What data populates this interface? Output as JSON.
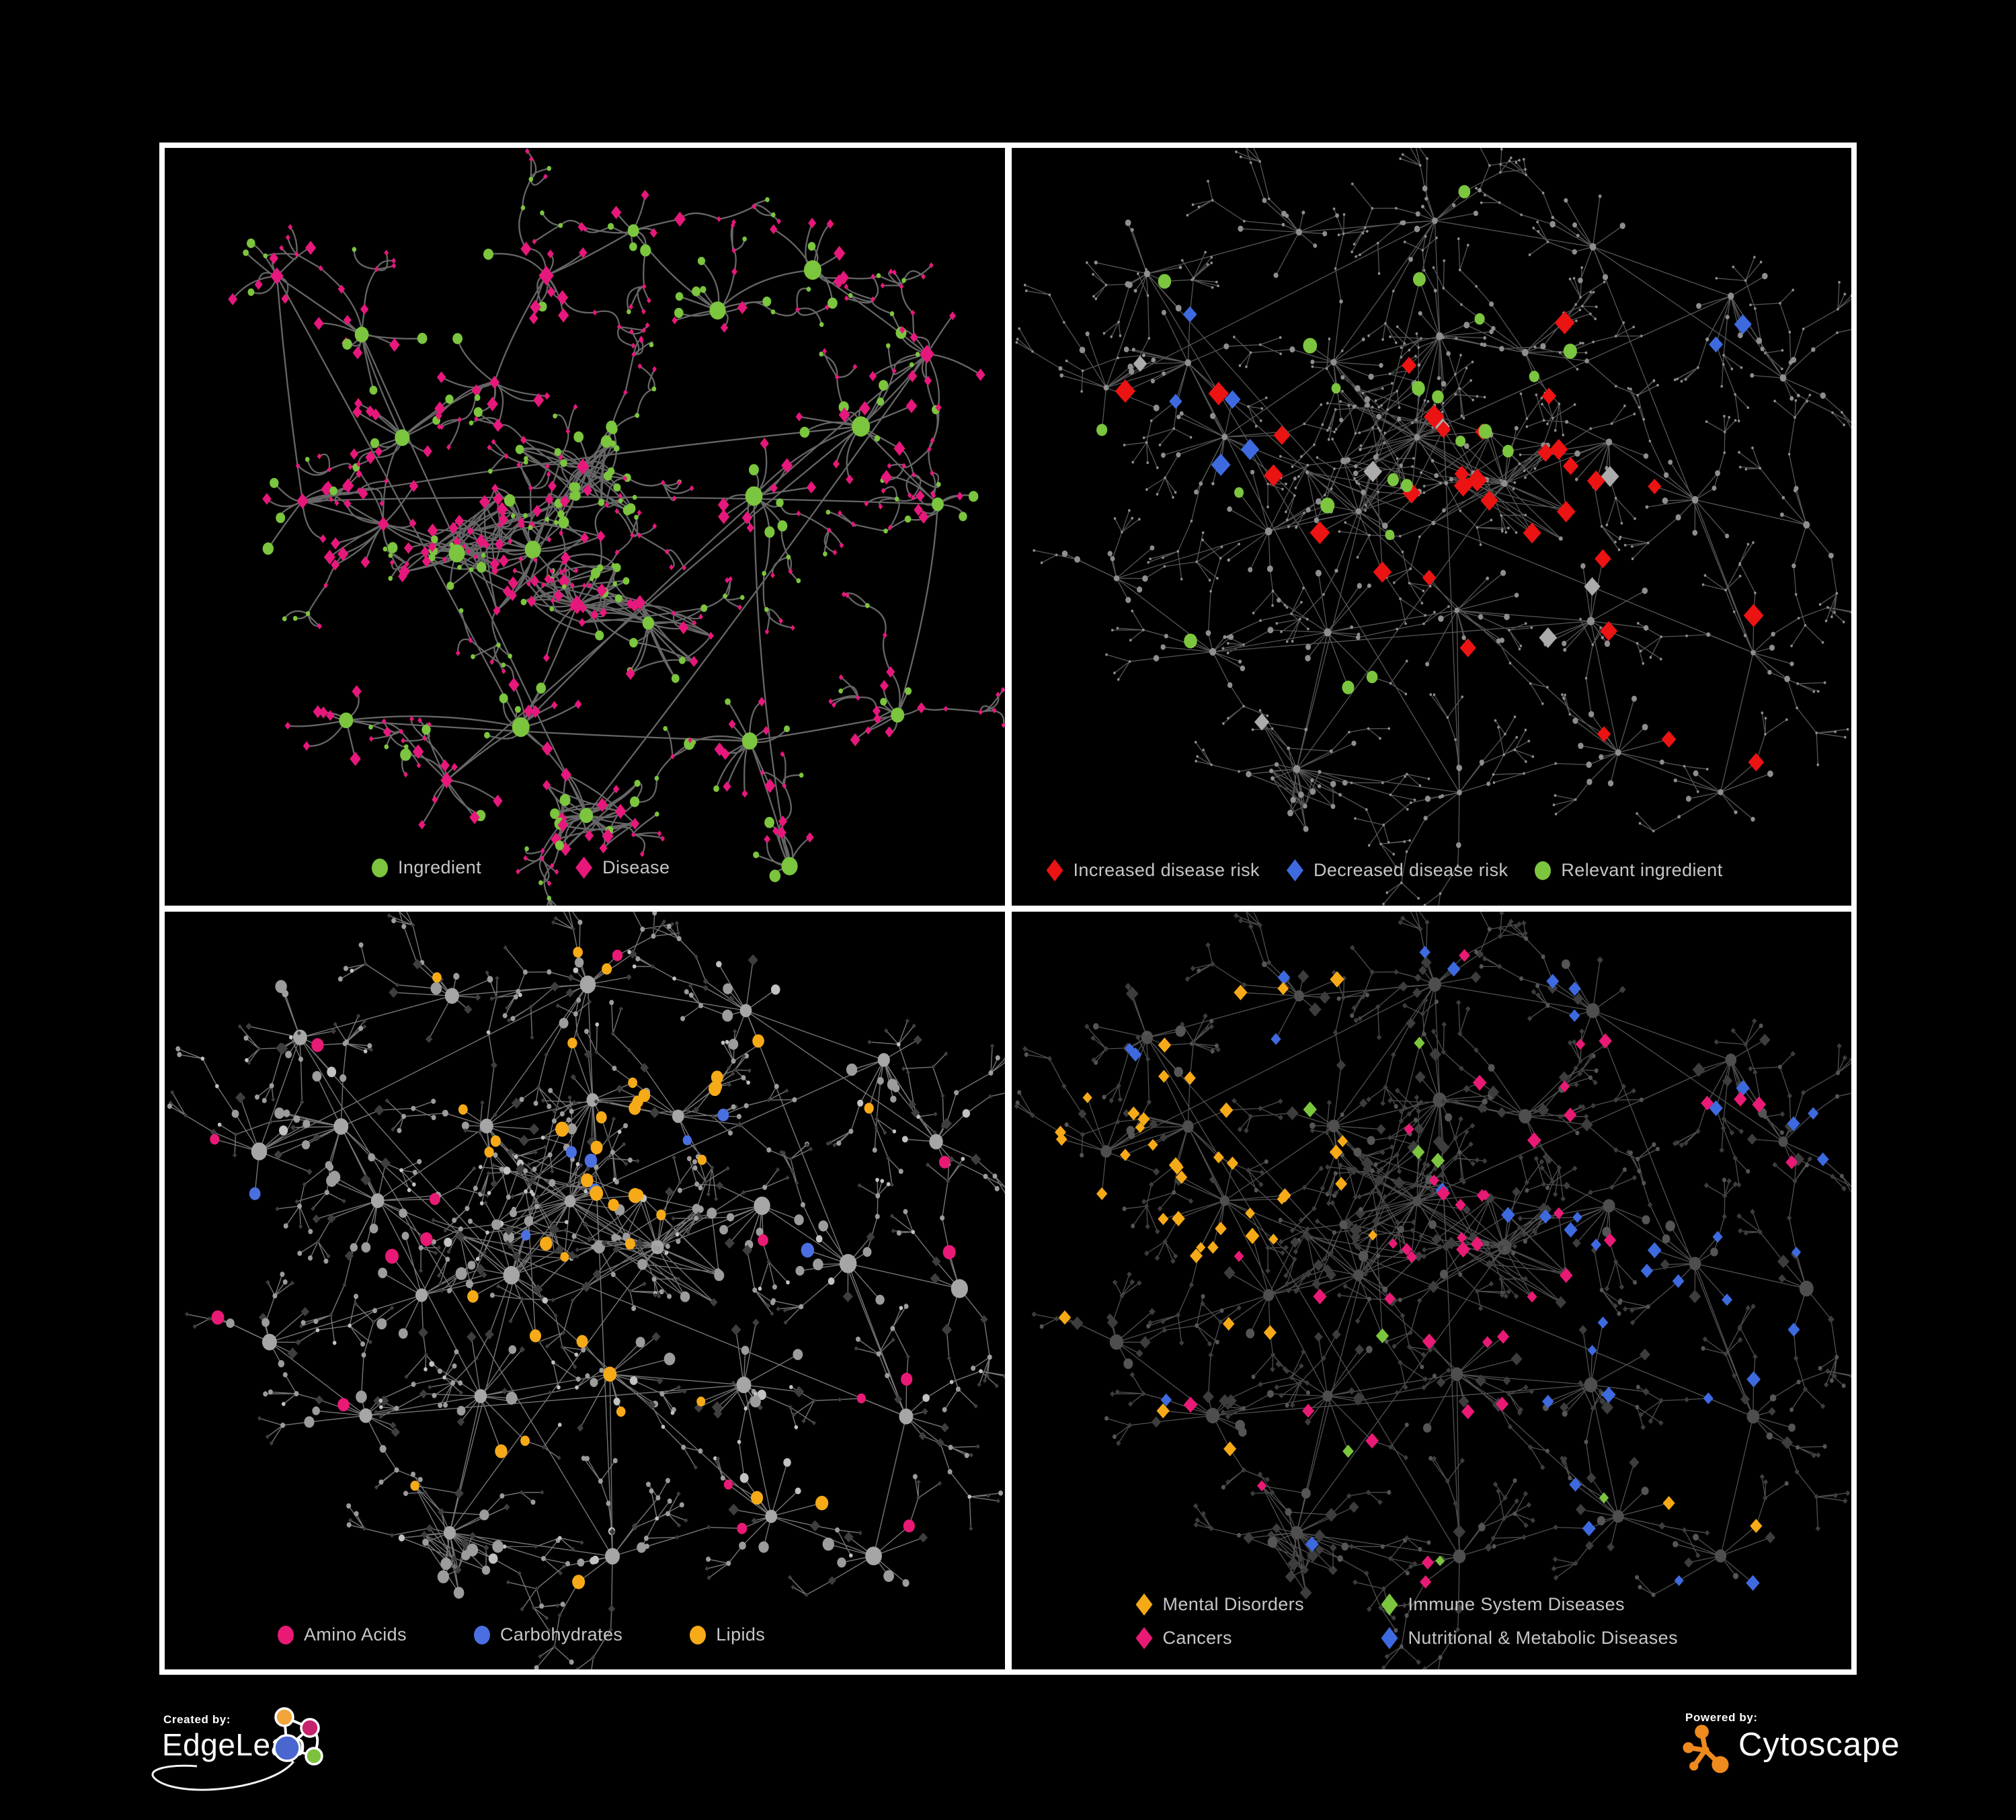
{
  "figure": {
    "background": "#000000",
    "panel_border_color": "#ffffff",
    "legend_text_color": "#c6c6c6"
  },
  "layouts": {
    "A": [
      [
        620,
        475,
        24,
        90,
        1
      ],
      [
        540,
        590,
        20,
        115
      ],
      [
        430,
        610,
        18,
        105
      ],
      [
        620,
        680,
        16,
        100
      ],
      [
        320,
        570,
        14,
        100
      ],
      [
        200,
        530,
        10,
        90
      ],
      [
        350,
        430,
        12,
        95
      ],
      [
        490,
        350,
        10,
        90
      ],
      [
        300,
        270,
        10,
        85
      ],
      [
        165,
        200,
        8,
        80
      ],
      [
        560,
        190,
        10,
        85
      ],
      [
        700,
        115,
        8,
        75
      ],
      [
        830,
        240,
        10,
        85
      ],
      [
        970,
        175,
        8,
        80
      ],
      [
        1130,
        300,
        10,
        85
      ],
      [
        1040,
        420,
        12,
        90
      ],
      [
        1160,
        540,
        8,
        80
      ],
      [
        880,
        520,
        12,
        95
      ],
      [
        730,
        700,
        16,
        95
      ],
      [
        1080,
        840,
        10,
        85
      ],
      [
        860,
        880,
        12,
        90
      ],
      [
        540,
        860,
        10,
        85
      ],
      [
        630,
        985,
        20,
        90
      ],
      [
        260,
        850,
        8,
        80
      ],
      [
        420,
        940,
        10,
        80
      ],
      [
        940,
        1060,
        8,
        75
      ]
    ],
    "B": [
      [
        200,
        190,
        9,
        85
      ],
      [
        420,
        130,
        10,
        80
      ],
      [
        640,
        100,
        12,
        85
      ],
      [
        870,
        150,
        10,
        80
      ],
      [
        1075,
        210,
        9,
        80
      ],
      [
        1150,
        345,
        8,
        75
      ],
      [
        150,
        360,
        9,
        85
      ],
      [
        260,
        310,
        13,
        95
      ],
      [
        320,
        430,
        14,
        95
      ],
      [
        480,
        310,
        12,
        90
      ],
      [
        630,
        270,
        14,
        95
      ],
      [
        770,
        310,
        12,
        90
      ],
      [
        600,
        430,
        22,
        120
      ],
      [
        730,
        490,
        20,
        115
      ],
      [
        520,
        530,
        16,
        105
      ],
      [
        380,
        575,
        10,
        90
      ],
      [
        890,
        430,
        10,
        90
      ],
      [
        1010,
        530,
        10,
        85
      ],
      [
        160,
        650,
        8,
        80
      ],
      [
        300,
        750,
        10,
        85
      ],
      [
        480,
        710,
        12,
        90
      ],
      [
        655,
        690,
        12,
        90
      ],
      [
        860,
        710,
        12,
        95
      ],
      [
        420,
        915,
        22,
        90
      ],
      [
        660,
        960,
        10,
        80
      ],
      [
        905,
        910,
        12,
        85
      ],
      [
        1105,
        760,
        8,
        78
      ],
      [
        1060,
        960,
        8,
        75
      ],
      [
        1185,
        555,
        6,
        70
      ]
    ]
  },
  "panels": [
    {
      "name": "ingredient-disease-network",
      "legend": [
        {
          "id": "ingredient",
          "label": "Ingredient",
          "shape": "circle",
          "color": "#7CC53E"
        },
        {
          "id": "disease",
          "label": "Disease",
          "shape": "diamond",
          "color": "#E6187C"
        }
      ],
      "network": {
        "layout": "A",
        "seed": 42,
        "curve": true,
        "branch": 0.22,
        "cross": 10,
        "edgeColor": "#787878",
        "edgeWidth": 2.3,
        "edgeOpacity": 0.85,
        "styles": {
          "hub": [
            {
              "w": 0.72,
              "shape": "circle",
              "color": "#7CC53E",
              "size": 10
            },
            {
              "w": 0.28,
              "shape": "diamond",
              "color": "#E6187C",
              "size": 8.5,
              "ratio": 1.3
            }
          ],
          "leaf": [
            {
              "w": 0.66,
              "shape": "diamond",
              "color": "#E6187C",
              "size": 6.2,
              "ratio": 1.3
            },
            {
              "w": 0.34,
              "shape": "circle",
              "color": "#7CC53E",
              "size": 6
            }
          ],
          "accent": {}
        },
        "accents": {}
      }
    },
    {
      "name": "disease-risk-network",
      "legend": [
        {
          "id": "increased-risk",
          "label": "Increased disease risk",
          "shape": "diamond",
          "color": "#EC1313"
        },
        {
          "id": "decreased-risk",
          "label": "Decreased disease risk",
          "shape": "diamond",
          "color": "#3E6AE0"
        },
        {
          "id": "relevant-ingredient",
          "label": "Relevant ingredient",
          "shape": "circle",
          "color": "#7CC53E"
        }
      ],
      "network": {
        "layout": "B",
        "seed": 13,
        "curve": false,
        "branch": 0.4,
        "cross": 16,
        "edgeColor": "#6C6C6C",
        "edgeWidth": 1.3,
        "edgeOpacity": 0.8,
        "styles": {
          "hub": [
            {
              "w": 1,
              "shape": "circle",
              "color": "#8E8E8E",
              "size": 4.2
            }
          ],
          "leaf": [
            {
              "w": 1,
              "shape": "circle",
              "color": "#8E8E8E",
              "size": 3.2
            }
          ],
          "accent": {
            "red": {
              "shape": "diamond",
              "color": "#EC1313",
              "size": 12.5,
              "ratio": 1.15
            },
            "blue": {
              "shape": "diamond",
              "color": "#3E6AE0",
              "size": 12,
              "ratio": 1.15
            },
            "silver": {
              "shape": "diamond",
              "color": "#ABABAB",
              "size": 11.5,
              "ratio": 1.15
            },
            "green": {
              "shape": "circle",
              "color": "#7CC53E",
              "size": 8.5
            }
          }
        },
        "accents": {
          "0": {
            "green": 1
          },
          "2": {
            "green": 1
          },
          "4": {
            "blue": 2
          },
          "6": {
            "green": 1
          },
          "7": {
            "blue": 2,
            "red": 2,
            "silver": 1
          },
          "8": {
            "blue": 3,
            "red": 2
          },
          "9": {
            "green": 2
          },
          "10": {
            "red": 1,
            "green": 2
          },
          "11": {
            "red": 2,
            "green": 2
          },
          "12": {
            "red": 5,
            "green": 3,
            "silver": 1
          },
          "13": {
            "red": 6,
            "green": 3
          },
          "14": {
            "green": 3,
            "red": 2,
            "silver": 1
          },
          "15": {
            "green": 1
          },
          "16": {
            "red": 3,
            "silver": 1
          },
          "17": {
            "red": 1
          },
          "19": {
            "green": 1
          },
          "20": {
            "green": 2
          },
          "21": {
            "red": 2
          },
          "22": {
            "red": 2,
            "silver": 2
          },
          "23": {
            "silver": 1
          },
          "25": {
            "red": 2
          },
          "26": {
            "red": 1
          },
          "27": {
            "red": 1
          }
        }
      }
    },
    {
      "name": "nutrient-class-network",
      "legend": [
        {
          "id": "amino-acids",
          "label": "Amino Acids",
          "shape": "circle",
          "color": "#E91A75"
        },
        {
          "id": "carbohydrates",
          "label": "Carbohydrates",
          "shape": "circle",
          "color": "#4A6FE0"
        },
        {
          "id": "lipids",
          "label": "Lipids",
          "shape": "circle",
          "color": "#F7AA18"
        }
      ],
      "network": {
        "layout": "B",
        "seed": 13,
        "curve": false,
        "branch": 0.4,
        "cross": 16,
        "edgeColor": "#9E9E9E",
        "edgeWidth": 1.4,
        "edgeOpacity": 0.75,
        "styles": {
          "hub": [
            {
              "w": 1,
              "shape": "circle",
              "color": "#A6A6A6",
              "size": 9.5
            }
          ],
          "leaf": [
            {
              "w": 0.5,
              "shape": "diamond",
              "color": "#3E3E3E",
              "size": 5.8,
              "ratio": 1.1
            },
            {
              "w": 0.37,
              "shape": "circle",
              "color": "#9C9C9C",
              "size": 6.3
            },
            {
              "w": 0.13,
              "shape": "circle",
              "color": "#C2C2C2",
              "size": 5
            }
          ],
          "accent": {
            "orange": {
              "shape": "circle",
              "color": "#F7AA18",
              "size": 8
            },
            "blue": {
              "shape": "circle",
              "color": "#4A6FE0",
              "size": 8
            },
            "pink": {
              "shape": "circle",
              "color": "#E91A75",
              "size": 8
            }
          }
        },
        "accents": {
          "0": {
            "pink": 1
          },
          "1": {
            "orange": 1
          },
          "2": {
            "orange": 2,
            "pink": 1
          },
          "3": {
            "orange": 1
          },
          "4": {
            "orange": 1
          },
          "5": {
            "pink": 1
          },
          "6": {
            "pink": 1,
            "blue": 1
          },
          "8": {
            "pink": 2
          },
          "9": {
            "orange": 3
          },
          "10": {
            "orange": 8
          },
          "11": {
            "orange": 4,
            "blue": 2
          },
          "12": {
            "orange": 6,
            "blue": 3
          },
          "13": {
            "orange": 3
          },
          "14": {
            "orange": 2,
            "blue": 1
          },
          "15": {
            "pink": 1
          },
          "16": {
            "pink": 1
          },
          "17": {
            "blue": 1
          },
          "18": {
            "pink": 1
          },
          "19": {
            "pink": 1
          },
          "20": {
            "orange": 2
          },
          "21": {
            "hub": "orange",
            "orange": 2
          },
          "22": {
            "orange": 1
          },
          "23": {
            "orange": 1
          },
          "24": {
            "orange": 1
          },
          "25": {
            "pink": 2,
            "orange": 2
          },
          "26": {
            "pink": 2
          },
          "27": {
            "pink": 1
          },
          "28": {
            "pink": 1
          }
        }
      }
    },
    {
      "name": "disease-class-network",
      "legend": [
        {
          "id": "mental-disorders",
          "label": "Mental Disorders",
          "shape": "diamond",
          "color": "#F7AA18"
        },
        {
          "id": "immune-system-diseases",
          "label": "Immune System Diseases",
          "shape": "diamond",
          "color": "#7CC53E"
        },
        {
          "id": "cancers",
          "label": "Cancers",
          "shape": "diamond",
          "color": "#E91A75"
        },
        {
          "id": "nutritional-metabolic-diseases",
          "label": "Nutritional & Metabolic Diseases",
          "shape": "diamond",
          "color": "#3E6AE0"
        }
      ],
      "network": {
        "layout": "B",
        "seed": 13,
        "curve": false,
        "branch": 0.4,
        "cross": 16,
        "edgeColor": "#646464",
        "edgeWidth": 1.3,
        "edgeOpacity": 0.8,
        "styles": {
          "hub": [
            {
              "w": 1,
              "shape": "circle",
              "color": "#4E4E4E",
              "size": 8
            }
          ],
          "leaf": [
            {
              "w": 0.78,
              "shape": "diamond",
              "color": "#3D3D3D",
              "size": 6.8,
              "ratio": 1.12
            },
            {
              "w": 0.22,
              "shape": "circle",
              "color": "#555555",
              "size": 5.5
            }
          ],
          "accent": {
            "orange": {
              "shape": "diamond",
              "color": "#F7AA18",
              "size": 8.5,
              "ratio": 1.15
            },
            "pink": {
              "shape": "diamond",
              "color": "#E91A75",
              "size": 8.5,
              "ratio": 1.15
            },
            "blue": {
              "shape": "diamond",
              "color": "#3E6AE0",
              "size": 8.5,
              "ratio": 1.15
            },
            "green": {
              "shape": "diamond",
              "color": "#7CC53E",
              "size": 8.5,
              "ratio": 1.15
            }
          }
        },
        "accents": {
          "0": {
            "blue": 2,
            "orange": 1
          },
          "1": {
            "orange": 3,
            "blue": 2
          },
          "2": {
            "blue": 2,
            "pink": 1
          },
          "3": {
            "blue": 3,
            "pink": 2
          },
          "4": {
            "pink": 3,
            "blue": 2
          },
          "5": {
            "blue": 3,
            "pink": 1
          },
          "6": {
            "orange": 4
          },
          "7": {
            "orange": 11
          },
          "8": {
            "orange": 12
          },
          "9": {
            "orange": 3,
            "green": 1
          },
          "10": {
            "pink": 2,
            "green": 1
          },
          "11": {
            "pink": 3
          },
          "12": {
            "pink": 6,
            "green": 2,
            "blue": 1
          },
          "13": {
            "pink": 7,
            "blue": 1
          },
          "14": {
            "pink": 3,
            "green": 1,
            "orange": 1
          },
          "15": {
            "orange": 3,
            "pink": 1
          },
          "16": {
            "blue": 4,
            "pink": 1
          },
          "17": {
            "blue": 5
          },
          "18": {
            "orange": 1
          },
          "19": {
            "orange": 2,
            "blue": 1,
            "pink": 1
          },
          "20": {
            "pink": 2,
            "green": 1
          },
          "21": {
            "pink": 5
          },
          "22": {
            "blue": 4
          },
          "23": {
            "blue": 1,
            "pink": 1
          },
          "24": {
            "green": 1,
            "pink": 2
          },
          "25": {
            "blue": 2,
            "orange": 1,
            "green": 1
          },
          "26": {
            "blue": 2
          },
          "27": {
            "blue": 2,
            "orange": 1
          },
          "28": {
            "blue": 2
          }
        }
      }
    }
  ],
  "footer": {
    "created_label": "Created by:",
    "created_brand": "EdgeLeap",
    "powered_label": "Powered by:",
    "powered_brand": "Cytoscape",
    "edgeleap_colors": {
      "orange": "#F2A53A",
      "pink": "#C6226E",
      "blue": "#4967CE",
      "green": "#7CC23C"
    },
    "cytoscape_color": "#EF8A1E"
  }
}
